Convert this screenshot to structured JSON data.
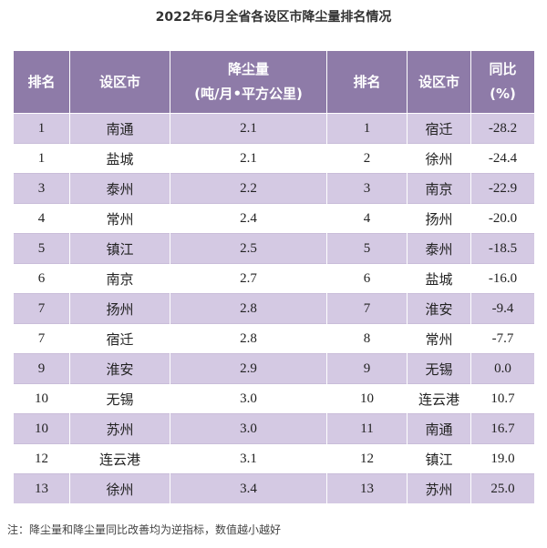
{
  "title": "2022年6月全省各设区市降尘量排名情况",
  "headers": {
    "rank1": "排名",
    "city1": "设区市",
    "dust_line1": "降尘量",
    "dust_line2": "(吨/月•平方公里)",
    "rank2": "排名",
    "city2": "设区市",
    "yoy_line1": "同比",
    "yoy_line2": "(%)"
  },
  "rows": [
    {
      "rank": "1",
      "city": "南通",
      "dust": "2.1",
      "rank2": "1",
      "city2": "宿迁",
      "yoy": "-28.2"
    },
    {
      "rank": "1",
      "city": "盐城",
      "dust": "2.1",
      "rank2": "2",
      "city2": "徐州",
      "yoy": "-24.4"
    },
    {
      "rank": "3",
      "city": "泰州",
      "dust": "2.2",
      "rank2": "3",
      "city2": "南京",
      "yoy": "-22.9"
    },
    {
      "rank": "4",
      "city": "常州",
      "dust": "2.4",
      "rank2": "4",
      "city2": "扬州",
      "yoy": "-20.0"
    },
    {
      "rank": "5",
      "city": "镇江",
      "dust": "2.5",
      "rank2": "5",
      "city2": "泰州",
      "yoy": "-18.5"
    },
    {
      "rank": "6",
      "city": "南京",
      "dust": "2.7",
      "rank2": "6",
      "city2": "盐城",
      "yoy": "-16.0"
    },
    {
      "rank": "7",
      "city": "扬州",
      "dust": "2.8",
      "rank2": "7",
      "city2": "淮安",
      "yoy": "-9.4"
    },
    {
      "rank": "7",
      "city": "宿迁",
      "dust": "2.8",
      "rank2": "8",
      "city2": "常州",
      "yoy": "-7.7"
    },
    {
      "rank": "9",
      "city": "淮安",
      "dust": "2.9",
      "rank2": "9",
      "city2": "无锡",
      "yoy": "0.0"
    },
    {
      "rank": "10",
      "city": "无锡",
      "dust": "3.0",
      "rank2": "10",
      "city2": "连云港",
      "yoy": "10.7"
    },
    {
      "rank": "10",
      "city": "苏州",
      "dust": "3.0",
      "rank2": "11",
      "city2": "南通",
      "yoy": "16.7"
    },
    {
      "rank": "12",
      "city": "连云港",
      "dust": "3.1",
      "rank2": "12",
      "city2": "镇江",
      "yoy": "19.0"
    },
    {
      "rank": "13",
      "city": "徐州",
      "dust": "3.4",
      "rank2": "13",
      "city2": "苏州",
      "yoy": "25.0"
    }
  ],
  "note": "注：降尘量和降尘量同比改善均为逆指标，数值越小越好",
  "colors": {
    "header": "#8e7ba8",
    "band": "#d4c9e3"
  }
}
